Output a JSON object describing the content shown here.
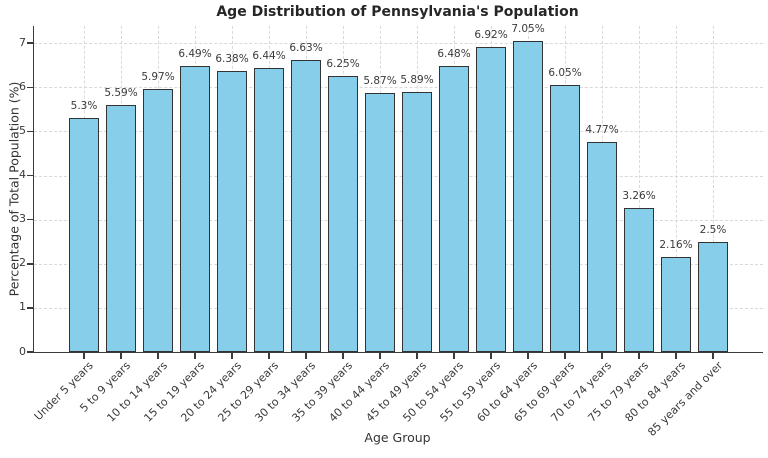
{
  "chart_data": {
    "type": "bar",
    "title": "Age Distribution of Pennsylvania's Population",
    "xlabel": "Age Group",
    "ylabel": "Percentage of Total Population (%)",
    "categories": [
      "Under 5 years",
      "5 to 9 years",
      "10 to 14 years",
      "15 to 19 years",
      "20 to 24 years",
      "25 to 29 years",
      "30 to 34 years",
      "35 to 39 years",
      "40 to 44 years",
      "45 to 49 years",
      "50 to 54 years",
      "55 to 59 years",
      "60 to 64 years",
      "65 to 69 years",
      "70 to 74 years",
      "75 to 79 years",
      "80 to 84 years",
      "85 years and over"
    ],
    "values": [
      5.3,
      5.59,
      5.97,
      6.49,
      6.38,
      6.44,
      6.63,
      6.25,
      5.87,
      5.89,
      6.48,
      6.92,
      7.05,
      6.05,
      4.77,
      3.26,
      2.16,
      2.5
    ],
    "value_labels": [
      "5.3%",
      "5.59%",
      "5.97%",
      "6.49%",
      "6.38%",
      "6.44%",
      "6.63%",
      "6.25%",
      "5.87%",
      "5.89%",
      "6.48%",
      "6.92%",
      "7.05%",
      "6.05%",
      "4.77%",
      "3.26%",
      "2.16%",
      "2.5%"
    ],
    "yticks": [
      0,
      1,
      2,
      3,
      4,
      5,
      6,
      7
    ],
    "ylim": [
      0,
      7.39
    ],
    "x_tick_rotation": 45,
    "grid": true,
    "legend_position": "none",
    "colors": {
      "bar_fill": "#87CEEB",
      "bar_edge": "#333333",
      "grid": "#d9d9d9",
      "spine": "#3b3b3b",
      "tick_text": "#3a3a3a",
      "title_text": "#262626"
    }
  }
}
